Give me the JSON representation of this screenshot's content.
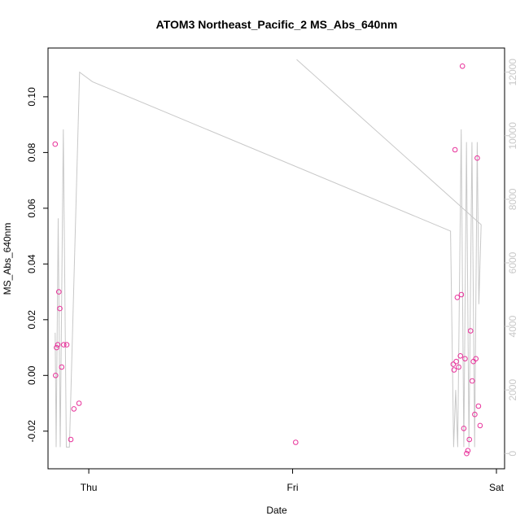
{
  "chart_data": {
    "type": "scatter",
    "title": "ATOM3 Northeast_Pacific_2 MS_Abs_640nm",
    "xlabel": "Date",
    "ylabel": "MS_Abs_640nm",
    "x_ticks": [
      {
        "label": "Thu",
        "value": 0
      },
      {
        "label": "Fri",
        "value": 1
      },
      {
        "label": "Sat",
        "value": 2
      }
    ],
    "x_range": [
      -0.2,
      2.04
    ],
    "y_ticks": [
      -0.02,
      0.0,
      0.02,
      0.04,
      0.06,
      0.08,
      0.1
    ],
    "ylim": [
      -0.0335,
      0.1175
    ],
    "y2_ticks": [
      0,
      2000,
      4000,
      6000,
      8000,
      10000,
      12000
    ],
    "y2lim": [
      -480,
      12760
    ],
    "grid": false,
    "series": [
      {
        "axis": "left",
        "color": "#e8319a",
        "marker": "circle-open",
        "points": [
          [
            -0.165,
            0.083
          ],
          [
            -0.163,
            0.0
          ],
          [
            -0.158,
            0.01
          ],
          [
            -0.152,
            0.011
          ],
          [
            -0.147,
            0.03
          ],
          [
            -0.142,
            0.024
          ],
          [
            -0.133,
            0.003
          ],
          [
            -0.123,
            0.011
          ],
          [
            -0.108,
            0.011
          ],
          [
            -0.088,
            -0.023
          ],
          [
            -0.073,
            -0.012
          ],
          [
            -0.048,
            -0.01
          ],
          [
            1.015,
            -0.024
          ],
          [
            1.788,
            0.004
          ],
          [
            1.792,
            0.002
          ],
          [
            1.797,
            0.081
          ],
          [
            1.803,
            0.005
          ],
          [
            1.808,
            0.028
          ],
          [
            1.815,
            0.003
          ],
          [
            1.823,
            0.007
          ],
          [
            1.828,
            0.029
          ],
          [
            1.833,
            0.111
          ],
          [
            1.84,
            -0.019
          ],
          [
            1.846,
            0.006
          ],
          [
            1.854,
            -0.028
          ],
          [
            1.86,
            -0.027
          ],
          [
            1.867,
            -0.023
          ],
          [
            1.873,
            0.016
          ],
          [
            1.881,
            -0.002
          ],
          [
            1.887,
            0.005
          ],
          [
            1.894,
            -0.014
          ],
          [
            1.899,
            0.006
          ],
          [
            1.906,
            0.078
          ],
          [
            1.912,
            -0.011
          ],
          [
            1.92,
            -0.018
          ]
        ]
      },
      {
        "axis": "right",
        "color": "#c8c8c8",
        "marker": "line",
        "points": [
          [
            -0.165,
            3800
          ],
          [
            -0.16,
            200
          ],
          [
            -0.15,
            7400
          ],
          [
            -0.14,
            200
          ],
          [
            -0.125,
            10200
          ],
          [
            -0.11,
            200
          ],
          [
            -0.095,
            200
          ],
          [
            -0.045,
            12000
          ],
          [
            0.018,
            11700
          ],
          [
            1.775,
            7000
          ],
          [
            1.79,
            200
          ],
          [
            1.8,
            2000
          ],
          [
            1.81,
            200
          ],
          [
            1.827,
            10200
          ],
          [
            1.84,
            200
          ],
          [
            1.853,
            9800
          ],
          [
            1.865,
            200
          ],
          [
            1.88,
            9800
          ],
          [
            1.893,
            200
          ],
          [
            1.906,
            9800
          ],
          [
            1.914,
            4700
          ],
          [
            1.925,
            7200
          ],
          [
            1.02,
            12400
          ]
        ]
      }
    ]
  }
}
